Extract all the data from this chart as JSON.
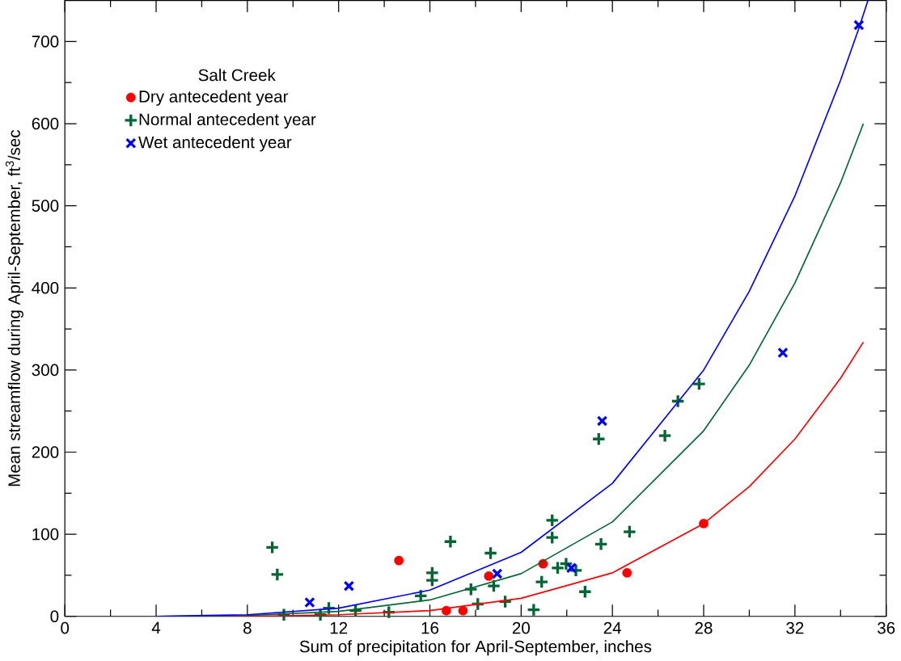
{
  "chart_data": {
    "type": "scatter",
    "xlabel": "Sum of precipitation for April-September, inches",
    "ylabel": "Mean streamflow during April-September, ft$^{3}$/sec",
    "legend_title": "Salt Creek",
    "legend": "top left",
    "xlim": [
      0,
      36
    ],
    "xticks": [
      0,
      4,
      8,
      12,
      16,
      20,
      24,
      28,
      32,
      36
    ],
    "ylim": [
      0,
      750
    ],
    "yticks": [
      0,
      100,
      200,
      300,
      400,
      500,
      600,
      700
    ],
    "grid": false,
    "series": [
      {
        "name": "Dry antecedent year",
        "color": "#ff0000",
        "marker": "circle",
        "x": [
          14.64,
          16.72,
          17.45,
          18.58,
          20.96,
          24.64,
          28.0
        ],
        "values": [
          68,
          7,
          7,
          49,
          64,
          53,
          113
        ]
      },
      {
        "name": "Normal antecedent year",
        "color": "#006633",
        "marker": "plus",
        "x": [
          9.09,
          9.31,
          9.6,
          11.2,
          11.57,
          12.74,
          14.2,
          15.6,
          16.1,
          16.1,
          16.9,
          17.8,
          18.1,
          18.66,
          18.8,
          19.3,
          20.55,
          20.9,
          21.36,
          21.36,
          21.6,
          21.97,
          22.4,
          22.8,
          23.4,
          23.5,
          24.75,
          26.3,
          26.87,
          27.8
        ],
        "values": [
          84,
          51,
          2,
          2,
          10,
          7,
          5,
          25,
          53,
          44,
          91,
          33,
          15,
          77,
          37,
          18,
          8,
          42,
          117,
          96,
          59,
          64,
          56,
          30,
          216,
          88,
          103,
          220,
          262,
          283
        ]
      },
      {
        "name": "Wet antecedent year",
        "color": "#0000ff",
        "marker": "cross",
        "x": [
          10.73,
          12.45,
          18.95,
          22.2,
          23.55,
          31.47,
          34.8
        ],
        "values": [
          17,
          37,
          52,
          59,
          238,
          321,
          720
        ]
      },
      {
        "type": "line",
        "color": "#ff0000",
        "marker": "none",
        "x": [
          4,
          8,
          12,
          16,
          20,
          24,
          28,
          30,
          32,
          34,
          35
        ],
        "values": [
          0,
          0,
          2,
          7,
          22,
          53,
          113,
          158,
          216,
          290,
          334
        ]
      },
      {
        "type": "line",
        "color": "#006633",
        "marker": "none",
        "x": [
          4,
          8,
          12,
          16,
          20,
          24,
          28,
          30,
          32,
          34,
          35
        ],
        "values": [
          0,
          1,
          6,
          20,
          52,
          115,
          226,
          306,
          406,
          528,
          600
        ]
      },
      {
        "type": "line",
        "color": "#0000ff",
        "marker": "none",
        "x": [
          4,
          8,
          12,
          16,
          20,
          24,
          28,
          30,
          32,
          34,
          34.8,
          35.2
        ],
        "values": [
          0,
          2,
          10,
          32,
          78,
          162,
          300,
          396,
          512,
          653,
          716,
          750
        ]
      }
    ]
  }
}
